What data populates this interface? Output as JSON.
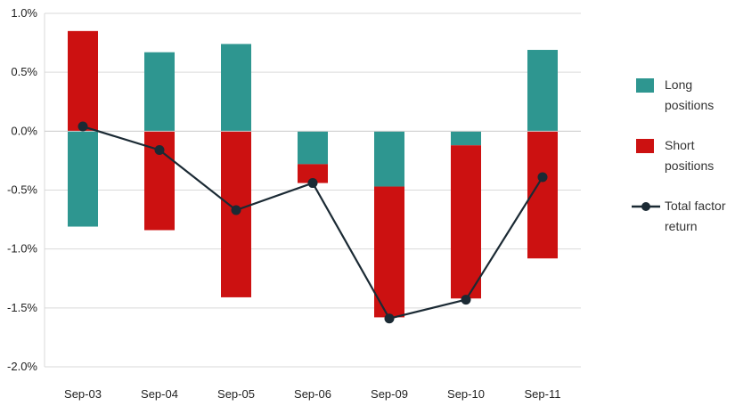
{
  "chart_data": {
    "type": "bar",
    "stacked": true,
    "categories": [
      "Sep-03",
      "Sep-04",
      "Sep-05",
      "Sep-06",
      "Sep-09",
      "Sep-10",
      "Sep-11"
    ],
    "series": [
      {
        "name": "Long positions",
        "kind": "bar",
        "color": "#2e9690",
        "values": [
          -0.81,
          0.67,
          0.74,
          -0.28,
          -0.47,
          -0.12,
          0.69
        ]
      },
      {
        "name": "Short positions",
        "kind": "bar",
        "color": "#cc1111",
        "values": [
          0.85,
          -0.84,
          -1.41,
          -0.16,
          -1.11,
          -1.3,
          -1.08
        ]
      },
      {
        "name": "Total factor return",
        "kind": "line",
        "color": "#1b2a34",
        "values": [
          0.04,
          -0.16,
          -0.67,
          -0.44,
          -1.59,
          -1.43,
          -0.39
        ]
      }
    ],
    "yticks": [
      "1.0%",
      "0.5%",
      "0.0%",
      "-0.5%",
      "-1.0%",
      "-1.5%",
      "-2.0%"
    ],
    "ylim": [
      -2.0,
      1.0
    ],
    "grid": true,
    "legend": "right"
  },
  "legend": {
    "long_line1": "Long",
    "long_line2": "positions",
    "short_line1": "Short",
    "short_line2": "positions",
    "total_line1": "Total factor",
    "total_line2": "return"
  }
}
